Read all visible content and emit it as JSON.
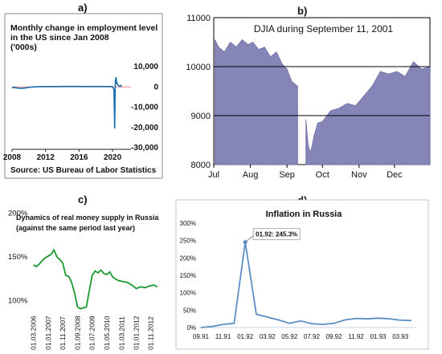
{
  "panel_labels": {
    "a": "a)",
    "b": "b)",
    "c": "c)",
    "d": "d)"
  },
  "chart_data": [
    {
      "id": "a",
      "type": "line",
      "title_lines": [
        "Monthly change in employment level",
        "in the US since Jan 2008",
        "('000s)"
      ],
      "source": "Source: US Bureau of Labor Statistics",
      "x_ticks": [
        "2008",
        "2012",
        "2016",
        "2020"
      ],
      "y_ticks": [
        "10,000",
        "0",
        "-10,000",
        "-20,000",
        "-30,000"
      ],
      "ylim": [
        -30000,
        12000
      ],
      "xlim": [
        2008,
        2022.2
      ],
      "line_color": "#1a6fae",
      "zero_line_color": "#f08a8a",
      "x": [
        2008,
        2008.4,
        2008.8,
        2009.2,
        2009.6,
        2010.0,
        2010.5,
        2011.0,
        2011.5,
        2012.0,
        2012.5,
        2013.0,
        2013.5,
        2014.0,
        2014.5,
        2015.0,
        2015.5,
        2016.0,
        2016.5,
        2017.0,
        2017.5,
        2018.0,
        2018.5,
        2019.0,
        2019.5,
        2020.0,
        2020.17,
        2020.25,
        2020.33,
        2020.42,
        2020.5,
        2020.58,
        2020.67,
        2020.75,
        2020.83,
        2020.92,
        2021.0,
        2021.1
      ],
      "y": [
        -200,
        -400,
        -600,
        -700,
        -500,
        -200,
        0,
        100,
        150,
        200,
        200,
        200,
        180,
        250,
        230,
        230,
        230,
        220,
        200,
        210,
        200,
        220,
        220,
        200,
        200,
        150,
        -1400,
        -20500,
        2700,
        4800,
        1500,
        1500,
        700,
        600,
        300,
        200,
        800,
        500
      ]
    },
    {
      "id": "b",
      "type": "area",
      "title": "DJIA during September 11, 2001",
      "x_ticks": [
        "Jul",
        "Aug",
        "Sep",
        "Oct",
        "Nov",
        "Dec"
      ],
      "y_ticks": [
        "11000",
        "10000",
        "9000",
        "8000"
      ],
      "ylim": [
        8000,
        11000
      ],
      "fill_color": "#8585b8",
      "grid_color": "#000000",
      "segments": [
        {
          "x": [
            "Jul 2",
            "Jul 5",
            "Jul 10",
            "Jul 15",
            "Jul 20",
            "Jul 25",
            "Jul 30",
            "Aug 3",
            "Aug 8",
            "Aug 13",
            "Aug 18",
            "Aug 23",
            "Aug 28",
            "Sep 1",
            "Sep 5",
            "Sep 10"
          ],
          "y": [
            10550,
            10400,
            10300,
            10500,
            10400,
            10550,
            10450,
            10500,
            10350,
            10400,
            10200,
            10300,
            10050,
            9950,
            9700,
            9600
          ]
        },
        {
          "x": [
            "Sep 17",
            "Sep 19",
            "Sep 21",
            "Sep 24",
            "Sep 27",
            "Oct 1",
            "Oct 8",
            "Oct 15",
            "Oct 22",
            "Oct 29",
            "Nov 5",
            "Nov 12",
            "Nov 19",
            "Nov 26",
            "Dec 3",
            "Dec 10",
            "Dec 17",
            "Dec 24",
            "Dec 31"
          ],
          "y": [
            8920,
            8380,
            8240,
            8600,
            8850,
            8880,
            9100,
            9150,
            9250,
            9200,
            9400,
            9600,
            9900,
            9850,
            9900,
            9800,
            10100,
            9950,
            10000
          ]
        }
      ]
    },
    {
      "id": "c",
      "type": "line",
      "title_lines": [
        "Dynamics of real money supply in Russia",
        "(against the same period last year)"
      ],
      "x_ticks": [
        "01.03.2006",
        "01.01.2007",
        "01.11.2007",
        "01.09.2008",
        "01.07.2009",
        "01.05.2010",
        "01.03.2011",
        "01.01.2012",
        "01.11.2012"
      ],
      "y_ticks": [
        "200%",
        "150%",
        "100%"
      ],
      "ylim": [
        75,
        205
      ],
      "line_color": "#1a9a2e",
      "x": [
        2006.17,
        2006.33,
        2006.5,
        2006.67,
        2006.83,
        2007.0,
        2007.17,
        2007.33,
        2007.5,
        2007.67,
        2007.83,
        2008.0,
        2008.17,
        2008.33,
        2008.5,
        2008.67,
        2008.83,
        2009.0,
        2009.17,
        2009.33,
        2009.5,
        2009.67,
        2009.83,
        2010.0,
        2010.17,
        2010.33,
        2010.5,
        2010.67,
        2010.83,
        2011.0,
        2011.25,
        2011.5,
        2011.75,
        2012.0,
        2012.25,
        2012.5,
        2012.75,
        2013.0,
        2013.2
      ],
      "y": [
        140,
        138,
        141,
        145,
        148,
        150,
        152,
        157,
        149,
        146,
        142,
        128,
        127,
        120,
        108,
        92,
        90,
        91,
        92,
        110,
        128,
        133,
        131,
        134,
        130,
        129,
        132,
        126,
        124,
        122,
        121,
        120,
        117,
        113,
        115,
        114,
        116,
        117,
        115
      ]
    },
    {
      "id": "d",
      "type": "line",
      "title": "Inflation in Russia",
      "annotation": "01.92: 245.3%",
      "x_ticks": [
        "09.91",
        "11.91",
        "01.92",
        "03.92",
        "05.92",
        "07.92",
        "09.92",
        "11.92",
        "01.93",
        "03.93"
      ],
      "y_ticks": [
        "300%",
        "250%",
        "200%",
        "150%",
        "100%",
        "50%",
        "0%"
      ],
      "ylim": [
        0,
        300
      ],
      "line_color": "#5b8fc4",
      "x": [
        "09.91",
        "10.91",
        "11.91",
        "12.91",
        "01.92",
        "02.92",
        "03.92",
        "04.92",
        "05.92",
        "06.92",
        "07.92",
        "08.92",
        "09.92",
        "10.92",
        "11.92",
        "12.92",
        "01.93",
        "02.93",
        "03.93",
        "04.93"
      ],
      "y": [
        0,
        3,
        9,
        12,
        245.3,
        38,
        30,
        22,
        12,
        19,
        11,
        9,
        12,
        22,
        26,
        25,
        27,
        25,
        21,
        20
      ]
    }
  ]
}
